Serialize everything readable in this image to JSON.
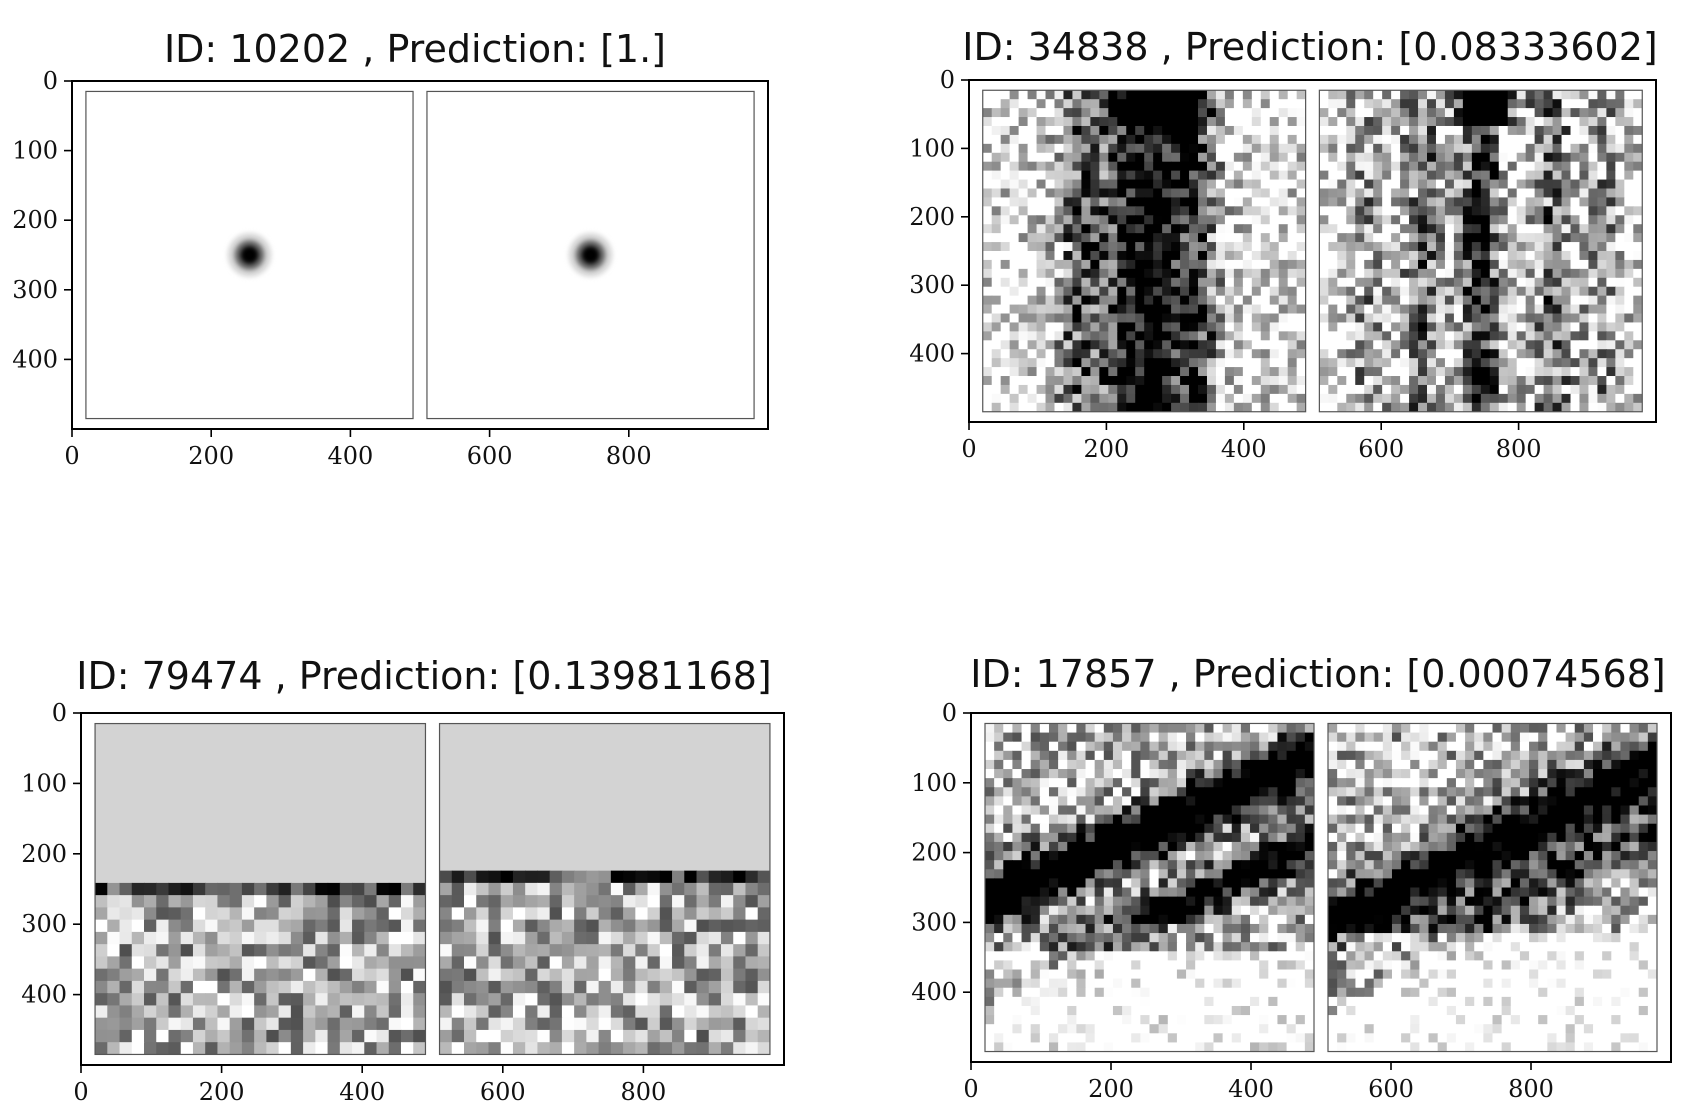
{
  "chart_data": [
    {
      "type": "heatmap",
      "title": "ID: 10202 , Prediction: [1.]",
      "id": "10202",
      "prediction": "[1.]",
      "pattern": "dot",
      "xlim": [
        0,
        1000
      ],
      "ylim": [
        500,
        0
      ],
      "xticks": [
        "0",
        "200",
        "400",
        "600",
        "800"
      ],
      "xtick_values": [
        0,
        200,
        400,
        600,
        800
      ],
      "yticks": [
        "0",
        "100",
        "200",
        "300",
        "400"
      ],
      "ytick_values": [
        0,
        100,
        200,
        300,
        400
      ],
      "panels": [
        {
          "x0": 20,
          "x1": 490,
          "y0": 15,
          "y1": 485,
          "dot_x": 255,
          "dot_y": 250
        },
        {
          "x0": 510,
          "x1": 980,
          "y0": 15,
          "y1": 485,
          "dot_x": 745,
          "dot_y": 250
        }
      ]
    },
    {
      "type": "heatmap",
      "title": "ID: 34838 , Prediction: [0.08333602]",
      "id": "34838",
      "prediction": "[0.08333602]",
      "pattern": "vertical-streaks",
      "xlim": [
        0,
        1000
      ],
      "ylim": [
        500,
        0
      ],
      "xticks": [
        "0",
        "200",
        "400",
        "600",
        "800"
      ],
      "xtick_values": [
        0,
        200,
        400,
        600,
        800
      ],
      "yticks": [
        "0",
        "100",
        "200",
        "300",
        "400"
      ],
      "ytick_values": [
        0,
        100,
        200,
        300,
        400
      ],
      "panels": [
        {
          "x0": 20,
          "x1": 490,
          "y0": 15,
          "y1": 485
        },
        {
          "x0": 510,
          "x1": 980,
          "y0": 15,
          "y1": 485
        }
      ]
    },
    {
      "type": "heatmap",
      "title": "ID: 79474 , Prediction: [0.13981168]",
      "id": "79474",
      "prediction": "[0.13981168]",
      "pattern": "gray-top-noise-bottom",
      "xlim": [
        0,
        1000
      ],
      "ylim": [
        500,
        0
      ],
      "xticks": [
        "0",
        "200",
        "400",
        "600",
        "800"
      ],
      "xtick_values": [
        0,
        200,
        400,
        600,
        800
      ],
      "yticks": [
        "0",
        "100",
        "200",
        "300",
        "400"
      ],
      "ytick_values": [
        0,
        100,
        200,
        300,
        400
      ],
      "panels": [
        {
          "x0": 20,
          "x1": 490,
          "y0": 15,
          "y1": 485,
          "gray_until": 245
        },
        {
          "x0": 510,
          "x1": 980,
          "y0": 15,
          "y1": 485,
          "gray_until": 220
        }
      ]
    },
    {
      "type": "heatmap",
      "title": "ID: 17857 , Prediction: [0.00074568]",
      "id": "17857",
      "prediction": "[0.00074568]",
      "pattern": "diagonal-band",
      "xlim": [
        0,
        1000
      ],
      "ylim": [
        500,
        0
      ],
      "xticks": [
        "0",
        "200",
        "400",
        "600",
        "800"
      ],
      "xtick_values": [
        0,
        200,
        400,
        600,
        800
      ],
      "yticks": [
        "0",
        "100",
        "200",
        "300",
        "400"
      ],
      "ytick_values": [
        0,
        100,
        200,
        300,
        400
      ],
      "panels": [
        {
          "x0": 20,
          "x1": 490,
          "y0": 15,
          "y1": 485
        },
        {
          "x0": 510,
          "x1": 980,
          "y0": 15,
          "y1": 485
        }
      ]
    }
  ]
}
